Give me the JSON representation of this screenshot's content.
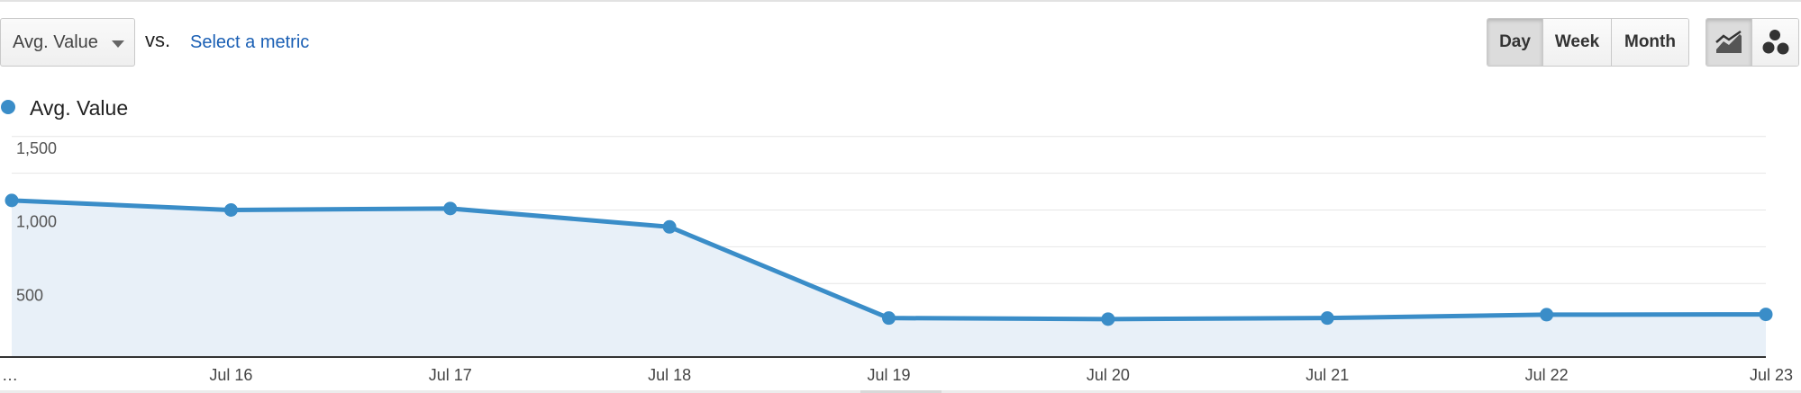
{
  "toolbar": {
    "metric_select": "Avg. Value",
    "vs_label": "vs.",
    "select_metric_link": "Select a metric",
    "periods": [
      "Day",
      "Week",
      "Month"
    ],
    "active_period": "Day",
    "chart_types": [
      "line-chart-icon",
      "motion-chart-icon"
    ],
    "active_chart_type": "line-chart-icon"
  },
  "colors": {
    "series": "#3a8dc8",
    "area_fill": "#e8f0f8",
    "grid": "#e6e6e6",
    "axis": "#333333",
    "link": "#1a5fb4"
  },
  "chart_data": {
    "type": "area",
    "title": "",
    "xlabel": "",
    "ylabel": "",
    "legend_position": "top-left",
    "grid": true,
    "x_tick_labels": [
      "…",
      "Jul 16",
      "Jul 17",
      "Jul 18",
      "Jul 19",
      "Jul 20",
      "Jul 21",
      "Jul 22",
      "Jul 23"
    ],
    "y_tick_labels": [
      "1,500",
      "1,000",
      "500"
    ],
    "y_ticks": [
      1500,
      1000,
      500
    ],
    "ylim": [
      0,
      1500
    ],
    "series": [
      {
        "name": "Avg. Value",
        "values": [
          1065,
          1000,
          1010,
          885,
          265,
          258,
          265,
          288,
          290
        ]
      }
    ]
  }
}
